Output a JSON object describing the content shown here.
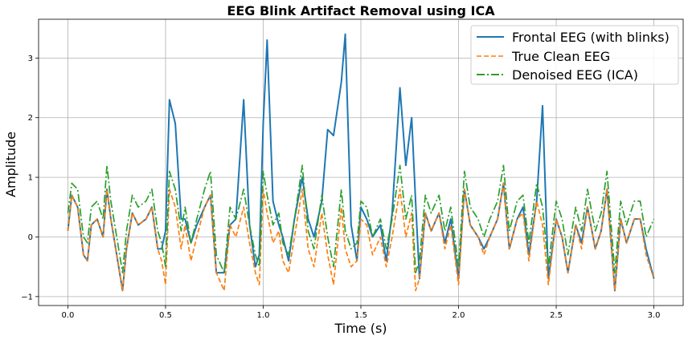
{
  "chart_data": {
    "type": "line",
    "title": "EEG Blink Artifact Removal using ICA",
    "xlabel": "Time (s)",
    "ylabel": "Amplitude",
    "xlim": [
      -0.15,
      3.15
    ],
    "ylim": [
      -1.15,
      3.65
    ],
    "xticks": [
      0.0,
      0.5,
      1.0,
      1.5,
      2.0,
      2.5,
      3.0
    ],
    "xtick_labels": [
      "0.0",
      "0.5",
      "1.0",
      "1.5",
      "2.0",
      "2.5",
      "3.0"
    ],
    "yticks": [
      -1,
      0,
      1,
      2,
      3
    ],
    "ytick_labels": [
      "−1",
      "0",
      "1",
      "2",
      "3"
    ],
    "grid": true,
    "legend_position": "top-right",
    "series": [
      {
        "name": "Frontal EEG (with blinks)",
        "color": "#1f77b4",
        "style": "solid",
        "x": [
          0.0,
          0.02,
          0.05,
          0.08,
          0.1,
          0.12,
          0.15,
          0.18,
          0.2,
          0.22,
          0.25,
          0.28,
          0.3,
          0.33,
          0.36,
          0.4,
          0.43,
          0.46,
          0.48,
          0.5,
          0.52,
          0.55,
          0.58,
          0.6,
          0.63,
          0.66,
          0.7,
          0.73,
          0.76,
          0.8,
          0.83,
          0.86,
          0.9,
          0.93,
          0.96,
          0.98,
          1.0,
          1.02,
          1.05,
          1.08,
          1.1,
          1.13,
          1.16,
          1.2,
          1.23,
          1.26,
          1.3,
          1.33,
          1.36,
          1.4,
          1.42,
          1.45,
          1.48,
          1.5,
          1.53,
          1.56,
          1.6,
          1.63,
          1.66,
          1.7,
          1.73,
          1.76,
          1.78,
          1.8,
          1.83,
          1.86,
          1.9,
          1.93,
          1.96,
          2.0,
          2.03,
          2.06,
          2.1,
          2.13,
          2.16,
          2.2,
          2.23,
          2.26,
          2.3,
          2.33,
          2.36,
          2.4,
          2.43,
          2.46,
          2.5,
          2.53,
          2.56,
          2.6,
          2.63,
          2.66,
          2.7,
          2.73,
          2.76,
          2.8,
          2.83,
          2.86,
          2.9,
          2.93,
          2.96,
          3.0
        ],
        "y": [
          0.1,
          0.7,
          0.5,
          -0.3,
          -0.4,
          0.2,
          0.3,
          0.0,
          0.8,
          0.3,
          -0.3,
          -0.9,
          -0.2,
          0.4,
          0.2,
          0.3,
          0.5,
          -0.2,
          -0.2,
          0.1,
          2.3,
          1.9,
          0.3,
          0.3,
          -0.1,
          0.2,
          0.5,
          0.7,
          -0.6,
          -0.6,
          0.2,
          0.3,
          2.3,
          0.2,
          -0.5,
          -0.3,
          1.9,
          3.3,
          0.6,
          0.2,
          0.0,
          -0.4,
          0.3,
          1.0,
          0.3,
          0.0,
          0.6,
          1.8,
          1.7,
          2.6,
          3.4,
          0.2,
          -0.4,
          0.5,
          0.3,
          0.0,
          0.2,
          -0.4,
          0.4,
          2.5,
          1.2,
          2.0,
          0.6,
          -0.7,
          0.4,
          0.1,
          0.4,
          -0.1,
          0.3,
          -0.7,
          0.8,
          0.2,
          0.0,
          -0.2,
          0.0,
          0.3,
          0.9,
          -0.2,
          0.3,
          0.5,
          -0.3,
          0.6,
          2.2,
          -0.7,
          0.3,
          0.0,
          -0.6,
          0.2,
          -0.1,
          0.5,
          -0.2,
          0.1,
          0.8,
          -0.9,
          0.3,
          -0.1,
          0.3,
          0.3,
          -0.2,
          -0.7
        ]
      },
      {
        "name": "True Clean EEG",
        "color": "#ff7f0e",
        "style": "dashed",
        "x": [
          0.0,
          0.02,
          0.05,
          0.08,
          0.1,
          0.12,
          0.15,
          0.18,
          0.2,
          0.22,
          0.25,
          0.28,
          0.3,
          0.33,
          0.36,
          0.4,
          0.43,
          0.46,
          0.48,
          0.5,
          0.52,
          0.55,
          0.58,
          0.6,
          0.63,
          0.66,
          0.7,
          0.73,
          0.76,
          0.8,
          0.83,
          0.86,
          0.9,
          0.93,
          0.96,
          0.98,
          1.0,
          1.02,
          1.05,
          1.08,
          1.1,
          1.13,
          1.16,
          1.2,
          1.23,
          1.26,
          1.3,
          1.33,
          1.36,
          1.4,
          1.42,
          1.45,
          1.48,
          1.5,
          1.53,
          1.56,
          1.6,
          1.63,
          1.66,
          1.7,
          1.73,
          1.76,
          1.78,
          1.8,
          1.83,
          1.86,
          1.9,
          1.93,
          1.96,
          2.0,
          2.03,
          2.06,
          2.1,
          2.13,
          2.16,
          2.2,
          2.23,
          2.26,
          2.3,
          2.33,
          2.36,
          2.4,
          2.43,
          2.46,
          2.5,
          2.53,
          2.56,
          2.6,
          2.63,
          2.66,
          2.7,
          2.73,
          2.76,
          2.8,
          2.83,
          2.86,
          2.9,
          2.93,
          2.96,
          3.0
        ],
        "y": [
          0.1,
          0.7,
          0.5,
          -0.3,
          -0.4,
          0.2,
          0.3,
          0.0,
          0.8,
          0.3,
          -0.3,
          -0.9,
          -0.2,
          0.4,
          0.2,
          0.3,
          0.5,
          -0.2,
          -0.4,
          -0.8,
          0.8,
          0.5,
          -0.2,
          0.2,
          -0.4,
          0.0,
          0.5,
          0.7,
          -0.6,
          -0.9,
          0.2,
          0.0,
          0.5,
          -0.1,
          -0.6,
          -0.8,
          0.8,
          0.4,
          -0.1,
          0.1,
          -0.4,
          -0.6,
          0.0,
          0.8,
          -0.2,
          -0.5,
          0.4,
          -0.3,
          -0.8,
          0.5,
          -0.2,
          -0.5,
          -0.4,
          0.3,
          0.2,
          -0.3,
          0.0,
          -0.5,
          0.0,
          0.8,
          0.0,
          0.4,
          -0.9,
          -0.7,
          0.4,
          0.1,
          0.4,
          -0.2,
          0.2,
          -0.8,
          0.8,
          0.2,
          0.0,
          -0.3,
          0.0,
          0.3,
          0.9,
          -0.2,
          0.3,
          0.4,
          -0.4,
          0.6,
          0.2,
          -0.8,
          0.3,
          0.0,
          -0.6,
          0.2,
          -0.2,
          0.5,
          -0.2,
          0.1,
          0.8,
          -0.9,
          0.3,
          -0.1,
          0.3,
          0.3,
          -0.3,
          -0.7
        ]
      },
      {
        "name": "Denoised EEG (ICA)",
        "color": "#2ca02c",
        "style": "dashdot",
        "x": [
          0.0,
          0.02,
          0.05,
          0.08,
          0.1,
          0.12,
          0.15,
          0.18,
          0.2,
          0.22,
          0.25,
          0.28,
          0.3,
          0.33,
          0.36,
          0.4,
          0.43,
          0.46,
          0.48,
          0.5,
          0.52,
          0.55,
          0.58,
          0.6,
          0.63,
          0.66,
          0.7,
          0.73,
          0.76,
          0.8,
          0.83,
          0.86,
          0.9,
          0.93,
          0.96,
          0.98,
          1.0,
          1.02,
          1.05,
          1.08,
          1.1,
          1.13,
          1.16,
          1.2,
          1.23,
          1.26,
          1.3,
          1.33,
          1.36,
          1.4,
          1.42,
          1.45,
          1.48,
          1.5,
          1.53,
          1.56,
          1.6,
          1.63,
          1.66,
          1.7,
          1.73,
          1.76,
          1.78,
          1.8,
          1.83,
          1.86,
          1.9,
          1.93,
          1.96,
          2.0,
          2.03,
          2.06,
          2.1,
          2.13,
          2.16,
          2.2,
          2.23,
          2.26,
          2.3,
          2.33,
          2.36,
          2.4,
          2.43,
          2.46,
          2.5,
          2.53,
          2.56,
          2.6,
          2.63,
          2.66,
          2.7,
          2.73,
          2.76,
          2.8,
          2.83,
          2.86,
          2.9,
          2.93,
          2.96,
          3.0
        ],
        "y": [
          0.4,
          0.9,
          0.8,
          0.0,
          -0.1,
          0.5,
          0.6,
          0.3,
          1.2,
          0.6,
          0.0,
          -0.6,
          0.1,
          0.7,
          0.5,
          0.6,
          0.8,
          0.1,
          -0.1,
          -0.5,
          1.1,
          0.8,
          0.1,
          0.5,
          -0.1,
          0.3,
          0.8,
          1.1,
          -0.3,
          -0.6,
          0.5,
          0.3,
          0.8,
          0.2,
          -0.3,
          -0.5,
          1.1,
          0.7,
          0.2,
          0.4,
          -0.1,
          -0.3,
          0.3,
          1.2,
          0.1,
          -0.2,
          0.7,
          0.0,
          -0.5,
          0.8,
          0.1,
          -0.2,
          -0.1,
          0.6,
          0.5,
          0.0,
          0.3,
          -0.2,
          0.3,
          1.2,
          0.3,
          0.7,
          -0.6,
          -0.4,
          0.7,
          0.4,
          0.7,
          0.1,
          0.5,
          -0.5,
          1.1,
          0.5,
          0.3,
          0.0,
          0.3,
          0.6,
          1.2,
          0.1,
          0.6,
          0.7,
          -0.1,
          0.9,
          0.5,
          -0.5,
          0.6,
          0.3,
          -0.3,
          0.5,
          0.1,
          0.8,
          0.1,
          0.4,
          1.1,
          -0.6,
          0.6,
          0.2,
          0.6,
          0.6,
          0.0,
          0.3
        ]
      }
    ]
  }
}
